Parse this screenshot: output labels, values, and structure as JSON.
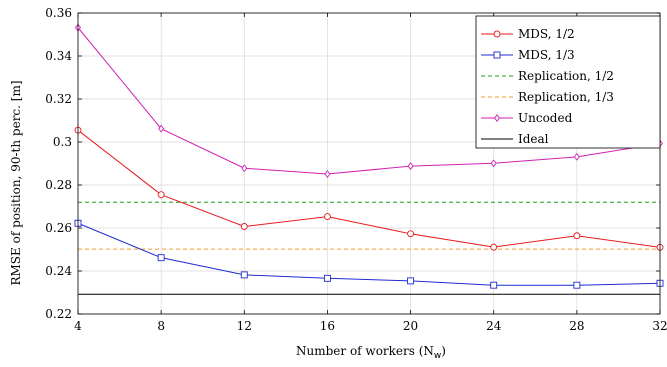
{
  "chart_data": {
    "type": "line",
    "xlabel": "Number of workers (N",
    "xlabel_sub": "w",
    "xlabel_tail": ")",
    "ylabel": "RMSE of position, 90-th perc. [m]",
    "xlim": [
      4,
      32
    ],
    "ylim": [
      0.22,
      0.36
    ],
    "x_ticks": [
      4,
      8,
      12,
      16,
      20,
      24,
      28,
      32
    ],
    "x_tick_labels": [
      "4",
      "8",
      "12",
      "16",
      "20",
      "24",
      "28",
      "32"
    ],
    "y_ticks": [
      0.22,
      0.24,
      0.26,
      0.28,
      0.3,
      0.32,
      0.34,
      0.36
    ],
    "y_tick_labels": [
      "0.22",
      "0.24",
      "0.26",
      "0.28",
      "0.3",
      "0.32",
      "0.34",
      "0.36"
    ],
    "grid": true,
    "legend_position": "top-right",
    "x": [
      4,
      8,
      12,
      16,
      20,
      24,
      28,
      32
    ],
    "series": [
      {
        "name": "MDS, 1/2",
        "color": "#e8191b",
        "marker": "circle",
        "dash": "solid",
        "values": [
          0.3055,
          0.2755,
          0.2607,
          0.2653,
          0.2573,
          0.2511,
          0.2564,
          0.251
        ]
      },
      {
        "name": "MDS, 1/3",
        "color": "#1f2bd1",
        "marker": "square",
        "dash": "solid",
        "values": [
          0.2622,
          0.2462,
          0.2382,
          0.2366,
          0.2354,
          0.2334,
          0.2334,
          0.2343
        ]
      },
      {
        "name": "Replication, 1/2",
        "color": "#1f9a1f",
        "marker": "none",
        "dash": "dashed",
        "values": [
          0.272,
          0.272,
          0.272,
          0.272,
          0.272,
          0.272,
          0.272,
          0.272
        ]
      },
      {
        "name": "Replication, 1/3",
        "color": "#f39b2a",
        "marker": "none",
        "dash": "dashed",
        "values": [
          0.2502,
          0.2502,
          0.2502,
          0.2502,
          0.2502,
          0.2502,
          0.2502,
          0.2502
        ]
      },
      {
        "name": "Uncoded",
        "color": "#d11fb0",
        "marker": "diamond",
        "dash": "solid",
        "values": [
          0.3532,
          0.3062,
          0.2878,
          0.2851,
          0.2888,
          0.2901,
          0.2931,
          0.2993
        ]
      },
      {
        "name": "Ideal",
        "color": "#000000",
        "marker": "none",
        "dash": "solid",
        "values": [
          0.2292,
          0.2292,
          0.2292,
          0.2292,
          0.2292,
          0.2292,
          0.2292,
          0.2292
        ]
      }
    ]
  }
}
